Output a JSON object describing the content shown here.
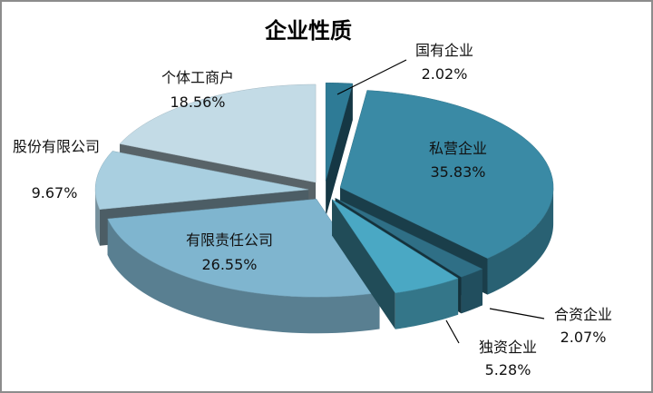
{
  "chart_data": {
    "type": "pie",
    "title": "企业性质",
    "categories": [
      "国有企业",
      "私营企业",
      "合资企业",
      "独资企业",
      "有限责任公司",
      "股份有限公司",
      "个体工商户"
    ],
    "values": [
      2.02,
      35.83,
      2.07,
      5.28,
      26.55,
      9.67,
      18.56
    ],
    "value_labels": [
      "2.02%",
      "35.83%",
      "2.07%",
      "5.28%",
      "26.55%",
      "9.67%",
      "18.56%"
    ],
    "colors": [
      "#2e7b96",
      "#3a8aa5",
      "#2f6f86",
      "#4aa8c4",
      "#7fb5cf",
      "#a9cfe0",
      "#c3dbe6"
    ]
  }
}
